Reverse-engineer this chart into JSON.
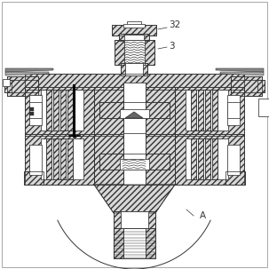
{
  "bg_color": "#ffffff",
  "label_32": "32",
  "label_3": "3",
  "label_A": "A",
  "lc": "#333333",
  "hfc": "#d8d8d8",
  "figsize": [
    3.03,
    3.03
  ],
  "dpi": 100
}
